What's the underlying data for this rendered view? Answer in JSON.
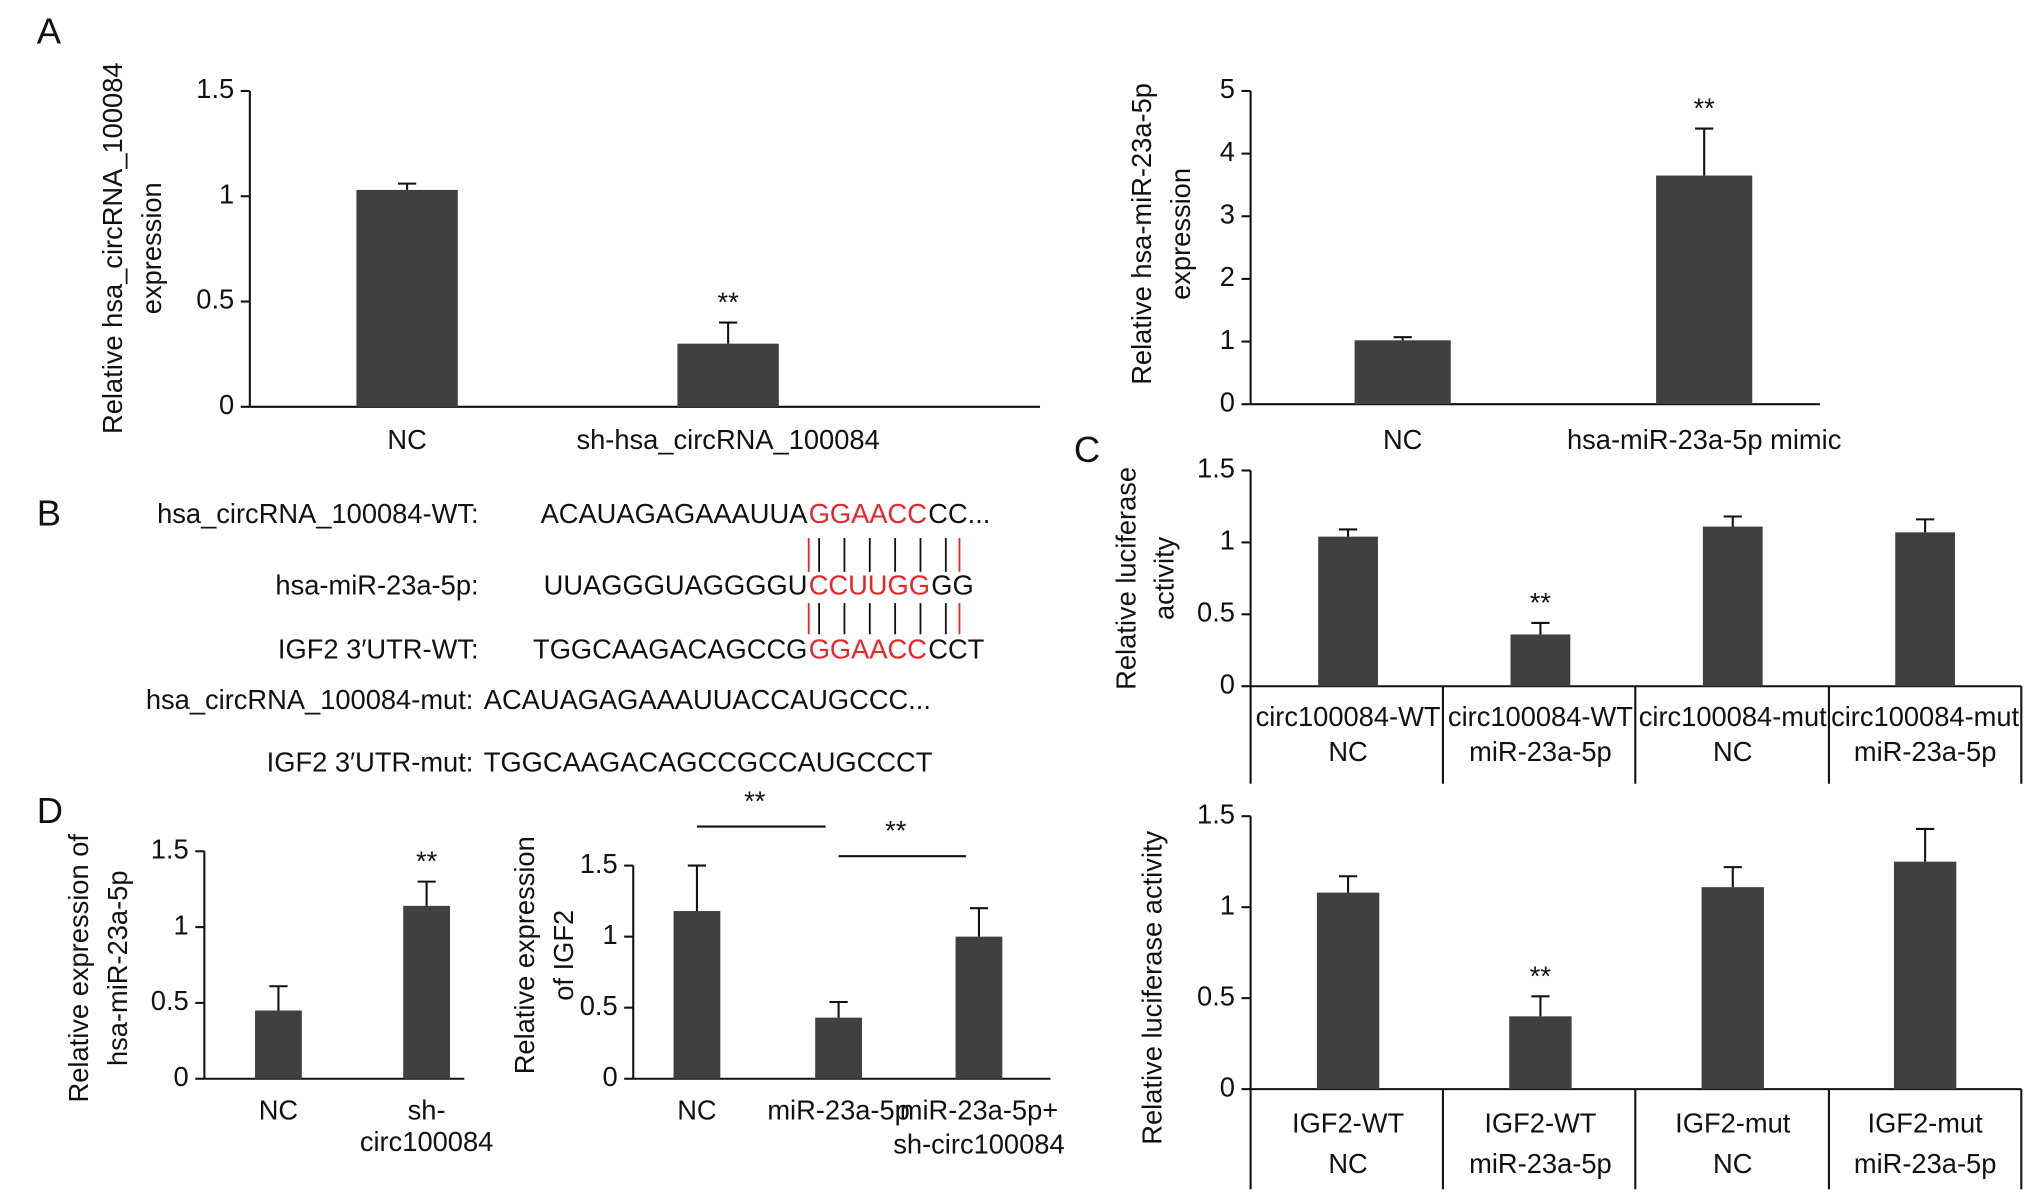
{
  "chart_data": [
    {
      "type": "bar",
      "panel": "A",
      "ylabel": [
        "Relative hsa_circRNA_100084",
        "expression"
      ],
      "categories": [
        [
          "NC"
        ],
        [
          "sh-hsa_circRNA_100084"
        ]
      ],
      "values": [
        1.03,
        0.3
      ],
      "errors": [
        0.03,
        0.1
      ],
      "value_annotations": [
        null,
        "**"
      ],
      "color": "#404040",
      "ylim": [
        0,
        1.5
      ],
      "yticks": [
        0,
        0.5,
        1,
        1.5
      ]
    },
    {
      "type": "bar",
      "ylabel": [
        "Relative hsa-miR-23a-5p",
        "expression"
      ],
      "categories": [
        [
          "NC"
        ],
        [
          "hsa-miR-23a-5p mimic"
        ]
      ],
      "values": [
        1.02,
        3.65
      ],
      "errors": [
        0.05,
        0.75
      ],
      "value_annotations": [
        null,
        "**"
      ],
      "color": "#404040",
      "ylim": [
        0,
        5
      ],
      "yticks": [
        0,
        1,
        2,
        3,
        4,
        5
      ]
    },
    {
      "type": "bar",
      "panel": "C",
      "ylabel": [
        "Relative luciferase",
        "activity"
      ],
      "categories": [
        [
          "circ100084-WT",
          "NC"
        ],
        [
          "circ100084-WT",
          "miR-23a-5p"
        ],
        [
          "circ100084-mut",
          "NC"
        ],
        [
          "circ100084-mut",
          "miR-23a-5p"
        ]
      ],
      "values": [
        1.04,
        0.36,
        1.11,
        1.07
      ],
      "errors": [
        0.05,
        0.08,
        0.07,
        0.09
      ],
      "value_annotations": [
        null,
        "**",
        null,
        null
      ],
      "color": "#404040",
      "ylim": [
        0,
        1.5
      ],
      "yticks": [
        0,
        0.5,
        1,
        1.5
      ]
    },
    {
      "type": "bar",
      "ylabel": [
        "Relative luciferase activity"
      ],
      "categories": [
        [
          "IGF2-WT",
          "NC"
        ],
        [
          "IGF2-WT",
          "miR-23a-5p"
        ],
        [
          "IGF2-mut",
          "NC"
        ],
        [
          "IGF2-mut",
          "miR-23a-5p"
        ]
      ],
      "values": [
        1.08,
        0.4,
        1.11,
        1.25
      ],
      "errors": [
        0.09,
        0.11,
        0.11,
        0.18
      ],
      "value_annotations": [
        null,
        "**",
        null,
        null
      ],
      "color": "#404040",
      "ylim": [
        0,
        1.5
      ],
      "yticks": [
        0,
        0.5,
        1,
        1.5
      ]
    },
    {
      "type": "bar",
      "panel": "D",
      "ylabel": [
        "Relative expression of",
        "hsa-miR-23a-5p"
      ],
      "categories": [
        [
          "NC"
        ],
        [
          "sh-",
          "circ100084"
        ]
      ],
      "values": [
        0.45,
        1.14
      ],
      "errors": [
        0.16,
        0.16
      ],
      "value_annotations": [
        null,
        "**"
      ],
      "color": "#404040",
      "ylim": [
        0,
        1.5
      ],
      "yticks": [
        0,
        0.5,
        1,
        1.5
      ]
    },
    {
      "type": "bar",
      "ylabel": [
        "Relative expression",
        "of IGF2"
      ],
      "categories": [
        [
          "NC"
        ],
        [
          "miR-23a-5p"
        ],
        [
          "miR-23a-5p+",
          "sh-circ100084"
        ]
      ],
      "values": [
        1.18,
        0.43,
        1.0
      ],
      "errors": [
        0.32,
        0.11,
        0.2
      ],
      "comparisons": [
        {
          "pair": [
            0,
            1
          ],
          "label": "**"
        },
        {
          "pair": [
            1,
            2
          ],
          "label": "**"
        }
      ],
      "color": "#404040",
      "ylim": [
        0,
        1.5
      ],
      "yticks": [
        0,
        0.5,
        1,
        1.5
      ]
    }
  ],
  "sequences": {
    "panel": "B",
    "highlight_color": "#e8262a",
    "rows": [
      {
        "label": "hsa_circRNA_100084-WT:",
        "parts": [
          "ACAUAGAGAAAUUA",
          "GGAACC",
          "CC..."
        ]
      },
      {
        "label": "hsa-miR-23a-5p:",
        "parts": [
          "UUAGGGUAGGGGU",
          "CCUUGG",
          "GG"
        ]
      },
      {
        "label": "IGF2 3′UTR-WT:",
        "parts": [
          "TGGCAAGACAGCCG",
          "GGAACC",
          "CCT"
        ]
      },
      {
        "label": "hsa_circRNA_100084-mut:",
        "parts": [
          "ACAUAGAGAAAUUACCAUGCCC..."
        ]
      },
      {
        "label": "IGF2 3′UTR-mut:",
        "parts": [
          "TGGCAAGACAGCCGCCAUGCCCT"
        ]
      }
    ]
  }
}
